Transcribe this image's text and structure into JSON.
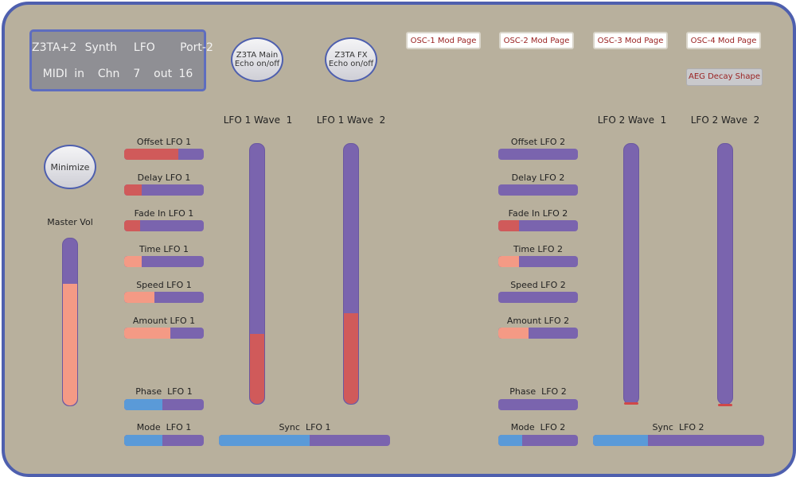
{
  "colors": {
    "panel_bg": "#b8b09d",
    "panel_border": "#4e5fae",
    "track": "#7a64ae",
    "fill_red": "#d05a5a",
    "fill_salmon": "#f49a85",
    "fill_blue": "#5a9ad8"
  },
  "display": {
    "line1": "Z3TA+2 Synth  LFO   Port-2",
    "line2": "MIDI in  Chn  7  out 16"
  },
  "buttons": {
    "main_echo": [
      "Z3TA Main",
      "Echo on/off"
    ],
    "fx_echo": [
      "Z3TA FX",
      "Echo on/off"
    ],
    "minimize": "Minimize",
    "osc1": "OSC-1 Mod Page",
    "osc2": "OSC-2 Mod Page",
    "osc3": "OSC-3 Mod Page",
    "osc4": "OSC-4 Mod Page",
    "aeg": "AEG Decay Shape"
  },
  "master": {
    "label": "Master Vol",
    "value": 0.73
  },
  "lfo1": {
    "wave1": {
      "label": "LFO 1 Wave  1",
      "value": 0.27
    },
    "wave2": {
      "label": "LFO 1 Wave  2",
      "value": 0.35
    },
    "offset": {
      "label": "Offset LFO 1",
      "value": 0.68
    },
    "delay": {
      "label": "Delay LFO 1",
      "value": 0.22
    },
    "fade_in": {
      "label": "Fade In LFO 1",
      "value": 0.2
    },
    "time": {
      "label": "Time LFO 1",
      "value": 0.22
    },
    "speed": {
      "label": "Speed LFO 1",
      "value": 0.38
    },
    "amount": {
      "label": "Amount LFO 1",
      "value": 0.58
    },
    "phase": {
      "label": "Phase  LFO 1",
      "value": 0.48
    },
    "mode": {
      "label": "Mode  LFO 1",
      "value": 0.48
    },
    "sync": {
      "label": "Sync  LFO 1",
      "value": 0.53
    }
  },
  "lfo2": {
    "wave1": {
      "label": "LFO 2 Wave  1",
      "value": 0.0
    },
    "wave2": {
      "label": "LFO 2 Wave  2",
      "value": 0.0
    },
    "offset": {
      "label": "Offset LFO 2",
      "value": 0.0
    },
    "delay": {
      "label": "Delay LFO 2",
      "value": 0.0
    },
    "fade_in": {
      "label": "Fade In LFO 2",
      "value": 0.26
    },
    "time": {
      "label": "Time LFO 2",
      "value": 0.26
    },
    "speed": {
      "label": "Speed LFO 2",
      "value": 0.0
    },
    "amount": {
      "label": "Amount LFO 2",
      "value": 0.38
    },
    "phase": {
      "label": "Phase  LFO 2",
      "value": 0.0
    },
    "mode": {
      "label": "Mode  LFO 2",
      "value": 0.3
    },
    "sync": {
      "label": "Sync  LFO 2",
      "value": 0.32
    }
  }
}
